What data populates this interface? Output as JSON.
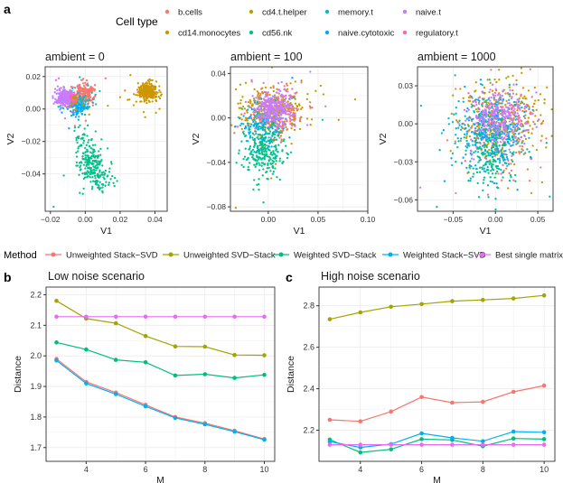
{
  "colors": {
    "b.cells": "#F8766D",
    "cd14.monocytes": "#CD9600",
    "cd4.t.helper": "#B8A000",
    "cd56.nk": "#00C08B",
    "memory.t": "#00BFC4",
    "naive.cytotoxic": "#00A9FF",
    "naive.t": "#C77CFF",
    "regulatory.t": "#FF61C3",
    "method_unweighted_stack_svd": "#F8766D",
    "method_unweighted_svd_stack": "#A3A500",
    "method_weighted_svd_stack": "#00BF7D",
    "method_weighted_stack_svd": "#00B0F6",
    "method_best_single": "#E76BF3",
    "panel_bg": "#ffffff",
    "grid": "#ebebeb",
    "border": "#333333"
  },
  "panel_labels": {
    "a": "a",
    "b": "b",
    "c": "c"
  },
  "cell_type_legend": {
    "title": "Cell type",
    "items": [
      {
        "label": "b.cells",
        "key": "b.cells"
      },
      {
        "label": "cd4.t.helper",
        "key": "cd4.t.helper"
      },
      {
        "label": "memory.t",
        "key": "memory.t"
      },
      {
        "label": "naive.t",
        "key": "naive.t"
      },
      {
        "label": "cd14.monocytes",
        "key": "cd14.monocytes"
      },
      {
        "label": "cd56.nk",
        "key": "cd56.nk"
      },
      {
        "label": "naive.cytotoxic",
        "key": "naive.cytotoxic"
      },
      {
        "label": "regulatory.t",
        "key": "regulatory.t"
      }
    ]
  },
  "method_legend": {
    "title": "Method",
    "items": [
      {
        "label": "Unweighted Stack−SVD",
        "key": "method_unweighted_stack_svd"
      },
      {
        "label": "Unweighted SVD−Stack",
        "key": "method_unweighted_svd_stack"
      },
      {
        "label": "Weighted SVD−Stack",
        "key": "method_weighted_svd_stack"
      },
      {
        "label": "Weighted Stack−SVD",
        "key": "method_weighted_stack_svd"
      },
      {
        "label": "Best single matrix",
        "key": "method_best_single"
      }
    ]
  },
  "chart_data": [
    {
      "type": "scatter",
      "title": "ambient = 0",
      "xlabel": "V1",
      "ylabel": "V2",
      "xlim": [
        -0.023,
        0.047
      ],
      "ylim": [
        -0.063,
        0.026
      ],
      "xticks": [
        -0.02,
        0.0,
        0.02,
        0.04
      ],
      "xtick_labels": [
        "−0.02",
        "0.00",
        "0.02",
        "0.04"
      ],
      "yticks": [
        -0.04,
        -0.02,
        0.0,
        0.02
      ],
      "ytick_labels": [
        "−0.04",
        "−0.02",
        "0.00",
        "0.02"
      ],
      "clusters": [
        {
          "group": "cd14.monocytes",
          "n": 260,
          "cx": 0.036,
          "cy": 0.011,
          "sx": 0.0028,
          "sy": 0.0028
        },
        {
          "group": "cd14.monocytes",
          "n": 8,
          "cx": 0.02,
          "cy": 0.005,
          "sx": 0.009,
          "sy": 0.004
        },
        {
          "group": "b.cells",
          "n": 180,
          "cx": 0.0,
          "cy": 0.009,
          "sx": 0.0028,
          "sy": 0.0032
        },
        {
          "group": "memory.t",
          "n": 120,
          "cx": -0.005,
          "cy": 0.004,
          "sx": 0.0035,
          "sy": 0.003
        },
        {
          "group": "naive.cytotoxic",
          "n": 80,
          "cx": -0.006,
          "cy": 0.001,
          "sx": 0.003,
          "sy": 0.0028
        },
        {
          "group": "cd4.t.helper",
          "n": 60,
          "cx": -0.008,
          "cy": 0.006,
          "sx": 0.003,
          "sy": 0.0025
        },
        {
          "group": "regulatory.t",
          "n": 40,
          "cx": -0.009,
          "cy": 0.007,
          "sx": 0.0025,
          "sy": 0.0025
        },
        {
          "group": "naive.t",
          "n": 230,
          "cx": -0.0125,
          "cy": 0.0075,
          "sx": 0.0022,
          "sy": 0.0025
        },
        {
          "group": "cd56.nk",
          "n": 170,
          "cx": 0.003,
          "cy": -0.033,
          "sx": 0.0035,
          "sy": 0.006
        },
        {
          "group": "cd56.nk",
          "n": 60,
          "cx": 0.009,
          "cy": -0.044,
          "sx": 0.0035,
          "sy": 0.0045
        },
        {
          "group": "cd56.nk",
          "n": 30,
          "cx": -0.002,
          "cy": -0.018,
          "sx": 0.002,
          "sy": 0.006
        }
      ]
    },
    {
      "type": "scatter",
      "title": "ambient = 100",
      "xlabel": "V1",
      "ylabel": "V2",
      "xlim": [
        -0.038,
        0.1
      ],
      "ylim": [
        -0.084,
        0.046
      ],
      "xticks": [
        0.0,
        0.05,
        0.1
      ],
      "xtick_labels": [
        "0.00",
        "0.05",
        "0.10"
      ],
      "yticks": [
        -0.08,
        -0.04,
        0.0,
        0.04
      ],
      "ytick_labels": [
        "−0.08",
        "−0.04",
        "0.00",
        "0.04"
      ],
      "clusters": [
        {
          "group": "cd14.monocytes",
          "n": 260,
          "cx": 0.004,
          "cy": 0.006,
          "sx": 0.016,
          "sy": 0.011
        },
        {
          "group": "b.cells",
          "n": 90,
          "cx": 0.01,
          "cy": 0.004,
          "sx": 0.013,
          "sy": 0.01
        },
        {
          "group": "memory.t",
          "n": 100,
          "cx": -0.006,
          "cy": -0.004,
          "sx": 0.012,
          "sy": 0.01
        },
        {
          "group": "naive.cytotoxic",
          "n": 90,
          "cx": -0.006,
          "cy": -0.008,
          "sx": 0.012,
          "sy": 0.01
        },
        {
          "group": "cd4.t.helper",
          "n": 60,
          "cx": 0.003,
          "cy": 0.006,
          "sx": 0.018,
          "sy": 0.012
        },
        {
          "group": "regulatory.t",
          "n": 40,
          "cx": 0.005,
          "cy": 0.004,
          "sx": 0.014,
          "sy": 0.01
        },
        {
          "group": "naive.t",
          "n": 280,
          "cx": 0.006,
          "cy": 0.007,
          "sx": 0.01,
          "sy": 0.008
        },
        {
          "group": "cd56.nk",
          "n": 240,
          "cx": -0.004,
          "cy": -0.031,
          "sx": 0.009,
          "sy": 0.011
        }
      ]
    },
    {
      "type": "scatter",
      "title": "ambient = 1000",
      "xlabel": "V1",
      "ylabel": "V2",
      "xlim": [
        -0.092,
        0.068
      ],
      "ylim": [
        -0.069,
        0.045
      ],
      "xticks": [
        -0.05,
        0.0,
        0.05
      ],
      "xtick_labels": [
        "−0.05",
        "0.00",
        "0.05"
      ],
      "yticks": [
        -0.06,
        -0.03,
        0.0,
        0.03
      ],
      "ytick_labels": [
        "−0.06",
        "−0.03",
        "0.00",
        "0.03"
      ],
      "clusters": [
        {
          "group": "cd14.monocytes",
          "n": 190,
          "cx": 0.01,
          "cy": 0.004,
          "sx": 0.024,
          "sy": 0.016
        },
        {
          "group": "b.cells",
          "n": 110,
          "cx": 0.004,
          "cy": 0.0,
          "sx": 0.022,
          "sy": 0.016
        },
        {
          "group": "memory.t",
          "n": 190,
          "cx": -0.006,
          "cy": -0.004,
          "sx": 0.02,
          "sy": 0.016
        },
        {
          "group": "naive.cytotoxic",
          "n": 190,
          "cx": -0.005,
          "cy": -0.006,
          "sx": 0.018,
          "sy": 0.014
        },
        {
          "group": "cd4.t.helper",
          "n": 90,
          "cx": 0.008,
          "cy": 0.004,
          "sx": 0.024,
          "sy": 0.016
        },
        {
          "group": "regulatory.t",
          "n": 70,
          "cx": 0.0,
          "cy": -0.002,
          "sx": 0.02,
          "sy": 0.015
        },
        {
          "group": "naive.t",
          "n": 260,
          "cx": 0.004,
          "cy": 0.003,
          "sx": 0.016,
          "sy": 0.012
        },
        {
          "group": "cd56.nk",
          "n": 200,
          "cx": -0.002,
          "cy": -0.024,
          "sx": 0.016,
          "sy": 0.016
        }
      ]
    },
    {
      "type": "line",
      "title": "Low noise scenario",
      "xlabel": "M",
      "ylabel": "Distance",
      "xlim": [
        2.65,
        10.35
      ],
      "ylim": [
        1.655,
        2.225
      ],
      "xticks": [
        4,
        6,
        8,
        10
      ],
      "yticks": [
        1.7,
        1.8,
        1.9,
        2.0,
        2.1,
        2.2
      ],
      "ytick_labels": [
        "1.7",
        "1.8",
        "1.9",
        "2.0",
        "2.1",
        "2.2"
      ],
      "x": [
        3,
        4,
        5,
        6,
        7,
        8,
        9,
        10
      ],
      "series": [
        {
          "name": "Unweighted Stack−SVD",
          "key": "method_unweighted_stack_svd",
          "values": [
            1.99,
            1.915,
            1.88,
            1.84,
            1.8,
            1.78,
            1.755,
            1.728
          ]
        },
        {
          "name": "Unweighted SVD−Stack",
          "key": "method_unweighted_svd_stack",
          "values": [
            2.18,
            2.122,
            2.107,
            2.065,
            2.031,
            2.03,
            2.003,
            2.002
          ]
        },
        {
          "name": "Weighted SVD−Stack",
          "key": "method_weighted_svd_stack",
          "values": [
            2.044,
            2.021,
            1.987,
            1.979,
            1.936,
            1.94,
            1.928,
            1.938
          ]
        },
        {
          "name": "Weighted Stack−SVD",
          "key": "method_weighted_stack_svd",
          "values": [
            1.985,
            1.91,
            1.875,
            1.835,
            1.797,
            1.776,
            1.752,
            1.726
          ]
        },
        {
          "name": "Best single matrix",
          "key": "method_best_single",
          "values": [
            2.128,
            2.128,
            2.128,
            2.128,
            2.128,
            2.128,
            2.128,
            2.128
          ]
        }
      ]
    },
    {
      "type": "line",
      "title": "High noise scenario",
      "xlabel": "M",
      "ylabel": "Distance",
      "xlim": [
        2.65,
        10.35
      ],
      "ylim": [
        2.05,
        2.89
      ],
      "xticks": [
        4,
        6,
        8,
        10
      ],
      "yticks": [
        2.2,
        2.4,
        2.6,
        2.8
      ],
      "ytick_labels": [
        "2.2",
        "2.4",
        "2.6",
        "2.8"
      ],
      "x": [
        3,
        4,
        5,
        6,
        7,
        8,
        9,
        10
      ],
      "series": [
        {
          "name": "Unweighted Stack−SVD",
          "key": "method_unweighted_stack_svd",
          "values": [
            2.25,
            2.243,
            2.29,
            2.36,
            2.333,
            2.337,
            2.385,
            2.415
          ]
        },
        {
          "name": "Unweighted SVD−Stack",
          "key": "method_unweighted_svd_stack",
          "values": [
            2.735,
            2.768,
            2.795,
            2.808,
            2.822,
            2.828,
            2.835,
            2.85
          ]
        },
        {
          "name": "Weighted SVD−Stack",
          "key": "method_weighted_svd_stack",
          "values": [
            2.155,
            2.093,
            2.108,
            2.157,
            2.153,
            2.123,
            2.16,
            2.157
          ]
        },
        {
          "name": "Weighted Stack−SVD",
          "key": "method_weighted_stack_svd",
          "values": [
            2.145,
            2.117,
            2.133,
            2.185,
            2.163,
            2.147,
            2.193,
            2.19
          ]
        },
        {
          "name": "Best single matrix",
          "key": "method_best_single",
          "values": [
            2.13,
            2.13,
            2.13,
            2.13,
            2.13,
            2.13,
            2.13,
            2.13
          ]
        }
      ]
    }
  ]
}
